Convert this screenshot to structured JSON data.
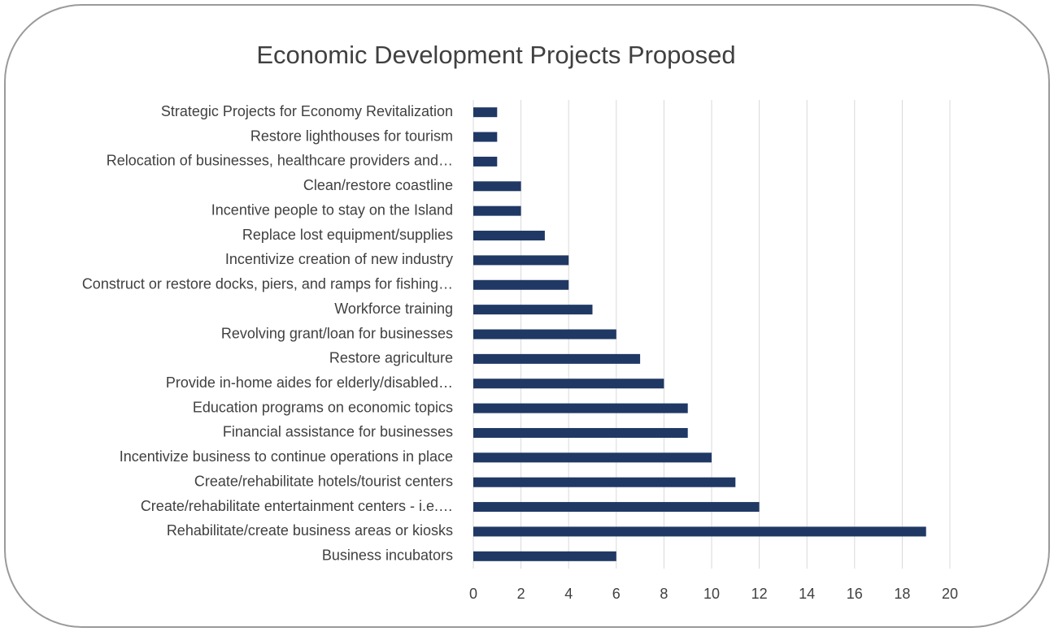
{
  "chart_data": {
    "type": "bar",
    "horizontal": true,
    "title": "Economic Development Projects Proposed",
    "categories": [
      "Strategic Projects for Economy Revitalization",
      "Restore lighthouses for tourism",
      "Relocation of businesses, healthcare providers and…",
      "Clean/restore coastline",
      "Incentive people to stay on the Island",
      "Replace lost equipment/supplies",
      "Incentivize creation of new industry",
      "Construct or restore docks, piers, and ramps for fishing…",
      "Workforce training",
      "Revolving grant/loan for businesses",
      "Restore agriculture",
      "Provide in-home aides for elderly/disabled…",
      "Education programs on economic topics",
      "Financial assistance for businesses",
      "Incentivize business to continue operations in place",
      "Create/rehabilitate hotels/tourist centers",
      "Create/rehabilitate entertainment centers - i.e.…",
      "Rehabilitate/create business areas or kiosks",
      "Business incubators"
    ],
    "values": [
      1,
      1,
      1,
      2,
      2,
      3,
      4,
      4,
      5,
      6,
      7,
      8,
      9,
      9,
      10,
      11,
      12,
      19,
      6
    ],
    "color": "#203864",
    "xlim": [
      0,
      20
    ],
    "xticks": [
      0,
      2,
      4,
      6,
      8,
      10,
      12,
      14,
      16,
      18,
      20
    ],
    "grid": true
  }
}
